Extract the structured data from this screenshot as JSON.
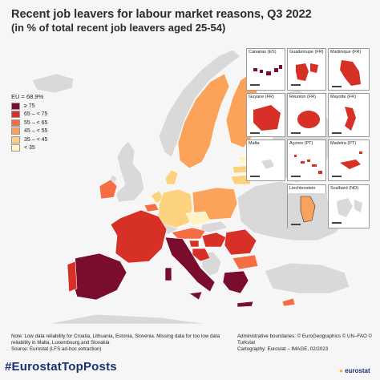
{
  "title": "Recent job leavers for labour market reasons, Q3 2022",
  "subtitle": "(in % of total recent job leavers aged 25-54)",
  "legend": {
    "eu_value": "EU = 68.9%",
    "classes": [
      {
        "label": "≥ 75",
        "color": "#7a0c2e"
      },
      {
        "label": "65 – < 75",
        "color": "#d73027"
      },
      {
        "label": "55 – < 65",
        "color": "#f46d43"
      },
      {
        "label": "45 – < 55",
        "color": "#fba35a"
      },
      {
        "label": "35 – < 45",
        "color": "#fdd27e"
      },
      {
        "label": "< 35",
        "color": "#fff3c4"
      }
    ]
  },
  "colors": {
    "no_data": "#d9d9d9",
    "sea": "#f6f6f6",
    "border": "#ffffff"
  },
  "insets": [
    {
      "label": "Canarias (ES)",
      "color": "#7a0c2e"
    },
    {
      "label": "Guadeloupe (FR)",
      "color": "#d73027"
    },
    {
      "label": "Martinique (FR)",
      "color": "#d73027"
    },
    {
      "label": "Guyane (FR)",
      "color": "#d73027"
    },
    {
      "label": "Réunion (FR)",
      "color": "#d73027"
    },
    {
      "label": "Mayotte (FR)",
      "color": "#d73027"
    },
    {
      "label": "Malta",
      "color": "#d9d9d9"
    },
    {
      "label": "Açores (PT)",
      "color": "#d73027"
    },
    {
      "label": "Madeira (PT)",
      "color": "#d73027"
    },
    {
      "label": "Liechtenstein",
      "color": "#fba35a"
    },
    {
      "label": "Svalbard (NO)",
      "color": "#d9d9d9"
    }
  ],
  "scale_labels": {
    "a": "0",
    "b": "100"
  },
  "footer": {
    "note": "Note: Low data reliability for Croatia, Lithuania, Estonia, Slovenia. Missing data for too low data reliability in Malta, Luxembourg and Slovakia",
    "source": "Source: Eurostat (LFS ad-hoc extraction)",
    "boundaries": "Administrative boundaries: © EuroGeographics © UN–FAO © Turkstat",
    "cartography": "Cartography: Eurostat – IMAGE, 02/2023"
  },
  "hashtag": "#EurostatTopPosts",
  "logo": "eurostat"
}
